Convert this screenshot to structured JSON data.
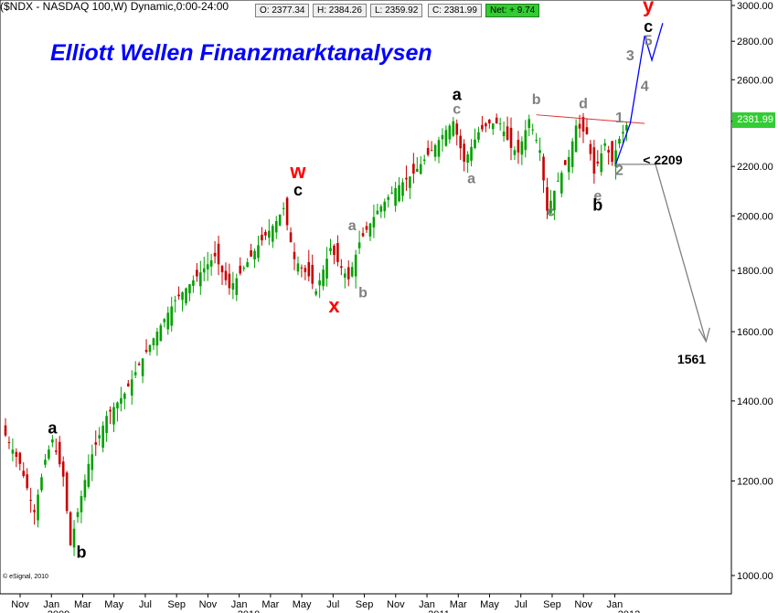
{
  "header": {
    "symbol_text": "($NDX - NASDAQ 100,W) Dynamic,0:00-24:00",
    "open": "O: 2377.34",
    "high": "H: 2384.26",
    "low": "L: 2359.92",
    "close": "C: 2381.99",
    "net": "Net: + 9.74"
  },
  "title": "Elliott Wellen Finanzmarktanalysen",
  "copyright": "© eSignal, 2010",
  "colors": {
    "up_candle": "#00a000",
    "down_candle": "#c80000",
    "title": "#0000ff",
    "projection_up": "#0000ff",
    "projection_down": "#808080",
    "resistance_line": "#e03030",
    "wave_red": "#ff0000",
    "wave_gray": "#808080",
    "wave_black": "#000000",
    "price_box": "#33cc33"
  },
  "chart_data": {
    "type": "candlestick",
    "scale": "log",
    "ylim": [
      1000,
      3000
    ],
    "y_ticks": [
      "3000.00",
      "2800.00",
      "2600.00",
      "2400.00",
      "2200.00",
      "2000.00",
      "1800.00",
      "1600.00",
      "1400.00",
      "1200.00",
      "1000.00"
    ],
    "x_ticks": [
      "Nov",
      "Jan",
      "Mar",
      "May",
      "Jul",
      "Sep",
      "Nov",
      "Jan",
      "Mar",
      "May",
      "Jul",
      "Sep",
      "Nov",
      "Jan",
      "Mar",
      "May",
      "Jul",
      "Sep",
      "Nov",
      "Jan"
    ],
    "year_labels": [
      "2009",
      "2010",
      "2011",
      "2012"
    ],
    "last_price": "2381.99",
    "weekly_close_path": [
      {
        "w": 0,
        "c": 1310
      },
      {
        "w": 4,
        "c": 1240
      },
      {
        "w": 8,
        "c": 1130
      },
      {
        "w": 11,
        "c": 1250
      },
      {
        "w": 13,
        "c": 1300
      },
      {
        "w": 16,
        "c": 1210
      },
      {
        "w": 18,
        "c": 1060
      },
      {
        "w": 20,
        "c": 1130
      },
      {
        "w": 23,
        "c": 1240
      },
      {
        "w": 28,
        "c": 1360
      },
      {
        "w": 33,
        "c": 1420
      },
      {
        "w": 37,
        "c": 1500
      },
      {
        "w": 42,
        "c": 1600
      },
      {
        "w": 47,
        "c": 1700
      },
      {
        "w": 53,
        "c": 1780
      },
      {
        "w": 58,
        "c": 1850
      },
      {
        "w": 62,
        "c": 1740
      },
      {
        "w": 65,
        "c": 1790
      },
      {
        "w": 70,
        "c": 1890
      },
      {
        "w": 75,
        "c": 1980
      },
      {
        "w": 77,
        "c": 2030
      },
      {
        "w": 80,
        "c": 1840
      },
      {
        "w": 84,
        "c": 1780
      },
      {
        "w": 86,
        "c": 1730
      },
      {
        "w": 90,
        "c": 1880
      },
      {
        "w": 92,
        "c": 1830
      },
      {
        "w": 95,
        "c": 1770
      },
      {
        "w": 98,
        "c": 1900
      },
      {
        "w": 103,
        "c": 2020
      },
      {
        "w": 108,
        "c": 2110
      },
      {
        "w": 113,
        "c": 2170
      },
      {
        "w": 118,
        "c": 2270
      },
      {
        "w": 122,
        "c": 2360
      },
      {
        "w": 124,
        "c": 2400
      },
      {
        "w": 127,
        "c": 2220
      },
      {
        "w": 131,
        "c": 2350
      },
      {
        "w": 134,
        "c": 2390
      },
      {
        "w": 137,
        "c": 2390
      },
      {
        "w": 140,
        "c": 2280
      },
      {
        "w": 142,
        "c": 2260
      },
      {
        "w": 145,
        "c": 2410
      },
      {
        "w": 148,
        "c": 2270
      },
      {
        "w": 150,
        "c": 2020
      },
      {
        "w": 153,
        "c": 2140
      },
      {
        "w": 156,
        "c": 2240
      },
      {
        "w": 158,
        "c": 2380
      },
      {
        "w": 161,
        "c": 2340
      },
      {
        "w": 163,
        "c": 2170
      },
      {
        "w": 166,
        "c": 2300
      },
      {
        "w": 168,
        "c": 2220
      },
      {
        "w": 170,
        "c": 2320
      },
      {
        "w": 172,
        "c": 2382
      }
    ],
    "resistance_line": [
      {
        "w": 147,
        "y": 2430
      },
      {
        "w": 177,
        "y": 2390
      }
    ],
    "projection_up": [
      {
        "w": 169,
        "y": 2209
      },
      {
        "w": 173,
        "y": 2390
      },
      {
        "w": 177,
        "y": 2830
      },
      {
        "w": 179,
        "y": 2700
      },
      {
        "w": 182,
        "y": 2900
      }
    ],
    "projection_down": [
      {
        "w": 169,
        "y": 2209
      },
      {
        "w": 180,
        "y": 2209
      },
      {
        "w": 194,
        "y": 1570
      }
    ],
    "annotations": [
      {
        "text": "a",
        "w": 13,
        "y": 1315,
        "color": "black",
        "size": 18
      },
      {
        "text": "b",
        "w": 21,
        "y": 1035,
        "color": "black",
        "size": 18
      },
      {
        "text": "w",
        "w": 81,
        "y": 2150,
        "color": "red",
        "size": 22
      },
      {
        "text": "c",
        "w": 81,
        "y": 2080,
        "color": "black",
        "size": 18
      },
      {
        "text": "x",
        "w": 91,
        "y": 1660,
        "color": "red",
        "size": 22
      },
      {
        "text": "a",
        "w": 96,
        "y": 1945,
        "color": "gray",
        "size": 16
      },
      {
        "text": "b",
        "w": 99,
        "y": 1710,
        "color": "gray",
        "size": 16
      },
      {
        "text": "a",
        "w": 125,
        "y": 2500,
        "color": "black",
        "size": 18
      },
      {
        "text": "c",
        "w": 125,
        "y": 2435,
        "color": "gray",
        "size": 16
      },
      {
        "text": "a",
        "w": 129,
        "y": 2130,
        "color": "gray",
        "size": 16
      },
      {
        "text": "b",
        "w": 147,
        "y": 2480,
        "color": "gray",
        "size": 16
      },
      {
        "text": "c",
        "w": 151,
        "y": 2000,
        "color": "gray",
        "size": 16
      },
      {
        "text": "d",
        "w": 160,
        "y": 2460,
        "color": "gray",
        "size": 16
      },
      {
        "text": "1",
        "w": 170,
        "y": 2395,
        "color": "gray",
        "size": 16
      },
      {
        "text": "e",
        "w": 164,
        "y": 2060,
        "color": "gray",
        "size": 16
      },
      {
        "text": "b",
        "w": 164,
        "y": 2020,
        "color": "black",
        "size": 18
      },
      {
        "text": "2",
        "w": 170,
        "y": 2165,
        "color": "gray",
        "size": 16
      },
      {
        "text": "3",
        "w": 173,
        "y": 2700,
        "color": "gray",
        "size": 16
      },
      {
        "text": "4",
        "w": 177,
        "y": 2545,
        "color": "gray",
        "size": 16
      },
      {
        "text": "5",
        "w": 178,
        "y": 2780,
        "color": "gray",
        "size": 16
      },
      {
        "text": "y",
        "w": 178,
        "y": 2960,
        "color": "red",
        "size": 22
      },
      {
        "text": "c",
        "w": 178,
        "y": 2850,
        "color": "black",
        "size": 18
      },
      {
        "text": "< 2209",
        "w": 182,
        "y": 2209,
        "color": "black",
        "size": 14
      },
      {
        "text": "1561",
        "w": 190,
        "y": 1505,
        "color": "black",
        "size": 14
      }
    ]
  }
}
